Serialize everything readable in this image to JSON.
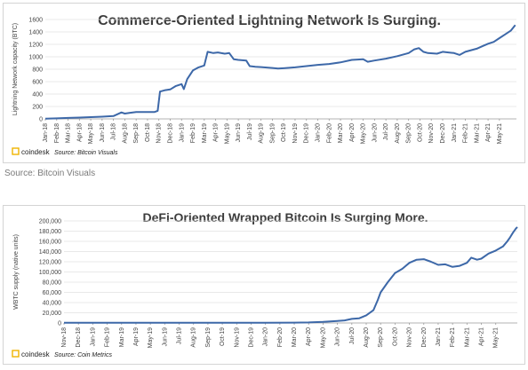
{
  "caption_between": "Source: Bitcoin Visuals",
  "chart_data": [
    {
      "type": "line",
      "title": "Commerce-Oriented Lightning Network Is Surging.",
      "ylabel": "Lightning Network capacity (BTC)",
      "xlabel": "",
      "ylim": [
        0,
        1600
      ],
      "yticks": [
        0,
        200,
        400,
        600,
        800,
        1000,
        1200,
        1400,
        1600
      ],
      "ytick_labels": [
        "0",
        "200",
        "400",
        "600",
        "800",
        "1000",
        "1200",
        "1400",
        "1600"
      ],
      "grid": true,
      "x_start": "2018-01",
      "categories": [
        "Jan-18",
        "Feb-18",
        "Mar-18",
        "Apr-18",
        "May-18",
        "Jun-18",
        "Jul-18",
        "Aug-18",
        "Sep-18",
        "Oct-18",
        "Nov-18",
        "Dec-18",
        "Jan-19",
        "Feb-19",
        "Mar-19",
        "Apr-19",
        "May-19",
        "Jun-19",
        "Jul-19",
        "Aug-19",
        "Sep-19",
        "Oct-19",
        "Nov-19",
        "Dec-19",
        "Jan-20",
        "Feb-20",
        "Mar-20",
        "Apr-20",
        "May-20",
        "Jun-20",
        "Jul-20",
        "Aug-20",
        "Sep-20",
        "Oct-20",
        "Nov-20",
        "Dec-20",
        "Jan-21",
        "Feb-21",
        "Mar-21",
        "Apr-21",
        "May-21"
      ],
      "x_tick_labels": [
        "Jan-18",
        "Feb-18",
        "Mar-18",
        "Apr-18",
        "May-18",
        "Jun-18",
        "Jul-18",
        "Aug-18",
        "Sep-18",
        "Oct-18",
        "Nov-18",
        "Dec-18",
        "Jan-19",
        "Feb-19",
        "Mar-19",
        "Apr-19",
        "May-19",
        "Jun-19",
        "Jul-19",
        "Aug-19",
        "Sep-19",
        "Oct-19",
        "Nov-19",
        "Dec-19",
        "Jan-20",
        "Feb-20",
        "Mar-20",
        "Apr-20",
        "May-20",
        "Jun-20",
        "Jul-20",
        "Aug-20",
        "Sep-20",
        "Oct-20",
        "Nov-20",
        "Dec-20",
        "Jan-21",
        "Feb-21",
        "Mar-21",
        "Apr-21",
        "May-21"
      ],
      "x_month_range": [
        0,
        41.5
      ],
      "points": [
        [
          0,
          5
        ],
        [
          1,
          8
        ],
        [
          2,
          15
        ],
        [
          3,
          22
        ],
        [
          4,
          28
        ],
        [
          5,
          35
        ],
        [
          6,
          45
        ],
        [
          6.7,
          105
        ],
        [
          7,
          85
        ],
        [
          7.4,
          95
        ],
        [
          8,
          110
        ],
        [
          9,
          112
        ],
        [
          9.6,
          110
        ],
        [
          9.9,
          130
        ],
        [
          10.1,
          440
        ],
        [
          10.5,
          460
        ],
        [
          11,
          475
        ],
        [
          11.5,
          530
        ],
        [
          12,
          560
        ],
        [
          12.2,
          480
        ],
        [
          12.5,
          640
        ],
        [
          13,
          780
        ],
        [
          13.5,
          830
        ],
        [
          14,
          860
        ],
        [
          14.3,
          1080
        ],
        [
          14.8,
          1060
        ],
        [
          15.2,
          1070
        ],
        [
          15.8,
          1050
        ],
        [
          16.2,
          1060
        ],
        [
          16.6,
          960
        ],
        [
          17,
          950
        ],
        [
          17.7,
          940
        ],
        [
          18,
          850
        ],
        [
          18.5,
          840
        ],
        [
          19,
          835
        ],
        [
          20,
          820
        ],
        [
          20.5,
          810
        ],
        [
          21,
          815
        ],
        [
          22,
          830
        ],
        [
          23,
          850
        ],
        [
          24,
          870
        ],
        [
          25,
          885
        ],
        [
          26,
          910
        ],
        [
          27,
          950
        ],
        [
          28,
          960
        ],
        [
          28.4,
          920
        ],
        [
          29,
          940
        ],
        [
          30,
          970
        ],
        [
          31,
          1010
        ],
        [
          32,
          1060
        ],
        [
          32.5,
          1120
        ],
        [
          32.9,
          1140
        ],
        [
          33.3,
          1080
        ],
        [
          33.7,
          1060
        ],
        [
          34.5,
          1050
        ],
        [
          35,
          1080
        ],
        [
          35.5,
          1070
        ],
        [
          36,
          1060
        ],
        [
          36.5,
          1030
        ],
        [
          37,
          1080
        ],
        [
          38,
          1130
        ],
        [
          38.5,
          1170
        ],
        [
          39,
          1210
        ],
        [
          39.5,
          1240
        ],
        [
          40,
          1300
        ],
        [
          40.5,
          1360
        ],
        [
          41,
          1420
        ],
        [
          41.4,
          1510
        ]
      ],
      "source_brand": "coindesk",
      "source_text": "Source: Bitcoin Visuals",
      "colors": {
        "line": "#3d68a8",
        "accent": "#f0b400"
      }
    },
    {
      "type": "line",
      "title": "DeFi-Oriented Wrapped Bitcoin Is Surging More.",
      "ylabel": "WBTC supply (native units)",
      "xlabel": "",
      "ylim": [
        0,
        200000
      ],
      "yticks": [
        0,
        20000,
        40000,
        60000,
        80000,
        100000,
        120000,
        140000,
        160000,
        180000,
        200000
      ],
      "ytick_labels": [
        "0",
        "20,000",
        "40,000",
        "60,000",
        "80,000",
        "100,000",
        "120,000",
        "140,000",
        "160,000",
        "180,000",
        "200,000"
      ],
      "grid": true,
      "x_start": "2018-11",
      "categories": [
        "Nov-18",
        "Dec-18",
        "Jan-19",
        "Feb-19",
        "Mar-19",
        "Apr-19",
        "May-19",
        "Jun-19",
        "Jul-19",
        "Aug-19",
        "Sep-19",
        "Oct-19",
        "Nov-19",
        "Dec-19",
        "Jan-20",
        "Feb-20",
        "Mar-20",
        "Apr-20",
        "May-20",
        "Jun-20",
        "Jul-20",
        "Aug-20",
        "Sep-20",
        "Oct-20",
        "Nov-20",
        "Dec-20",
        "Jan-21",
        "Feb-21",
        "Mar-21",
        "Apr-21",
        "May-21"
      ],
      "x_tick_labels": [
        "Nov-18",
        "Dec-18",
        "Jan-19",
        "Feb-19",
        "Mar-19",
        "Apr-19",
        "May-19",
        "Jun-19",
        "Jul-19",
        "Aug-19",
        "Sep-19",
        "Oct-19",
        "Nov-19",
        "Dec-19",
        "Jan-20",
        "Feb-20",
        "Mar-20",
        "Apr-20",
        "May-20",
        "Jun-20",
        "Jul-20",
        "Aug-20",
        "Sep-20",
        "Oct-20",
        "Nov-20",
        "Dec-20",
        "Jan-21",
        "Feb-21",
        "Mar-21",
        "Apr-21",
        "May-21"
      ],
      "x_month_range": [
        0,
        31.5
      ],
      "points": [
        [
          0,
          300
        ],
        [
          4,
          300
        ],
        [
          8,
          350
        ],
        [
          12,
          400
        ],
        [
          14,
          500
        ],
        [
          16,
          700
        ],
        [
          17,
          1000
        ],
        [
          18,
          2000
        ],
        [
          19,
          4000
        ],
        [
          19.5,
          5000
        ],
        [
          20,
          8000
        ],
        [
          20.5,
          9000
        ],
        [
          21,
          15000
        ],
        [
          21.5,
          25000
        ],
        [
          21.8,
          45000
        ],
        [
          22,
          60000
        ],
        [
          22.5,
          80000
        ],
        [
          23,
          98000
        ],
        [
          23.5,
          106000
        ],
        [
          24,
          118000
        ],
        [
          24.5,
          124000
        ],
        [
          25,
          125000
        ],
        [
          25.5,
          120000
        ],
        [
          26,
          114000
        ],
        [
          26.5,
          115000
        ],
        [
          27,
          110000
        ],
        [
          27.5,
          112000
        ],
        [
          28,
          118000
        ],
        [
          28.3,
          128000
        ],
        [
          28.7,
          124000
        ],
        [
          29,
          126000
        ],
        [
          29.5,
          136000
        ],
        [
          30,
          142000
        ],
        [
          30.5,
          150000
        ],
        [
          30.8,
          160000
        ],
        [
          31,
          168000
        ],
        [
          31.2,
          177000
        ],
        [
          31.4,
          185000
        ],
        [
          31.5,
          188000
        ]
      ],
      "source_brand": "coindesk",
      "source_text": "Source: Coin Metrics",
      "colors": {
        "line": "#3d68a8",
        "accent": "#f0b400"
      }
    }
  ]
}
